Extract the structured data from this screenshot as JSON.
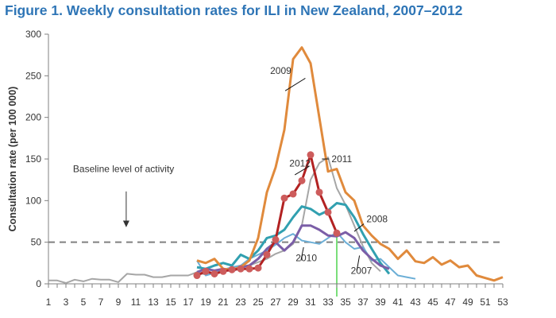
{
  "chart_data": {
    "type": "line",
    "title": "Figure 1. Weekly consultation rates for ILI in New Zealand, 2007–2012",
    "xlabel": "",
    "ylabel": "Consultation rate (per 100 000)",
    "xlim": [
      1,
      53
    ],
    "ylim": [
      0,
      300
    ],
    "yticks": [
      0,
      50,
      100,
      150,
      200,
      250,
      300
    ],
    "xticks": [
      1,
      3,
      5,
      7,
      9,
      11,
      13,
      15,
      17,
      19,
      21,
      23,
      25,
      27,
      29,
      31,
      33,
      35,
      37,
      39,
      41,
      43,
      45,
      47,
      49,
      51,
      53
    ],
    "grid": false,
    "baseline": {
      "value": 50,
      "label": "Baseline level of activity",
      "color": "#808080"
    },
    "marker_line": {
      "week": 34,
      "color": "#33cc33"
    },
    "series": [
      {
        "name": "2011",
        "color": "#a6a6a6",
        "start_week": 1,
        "values": [
          4,
          4,
          1,
          5,
          3,
          6,
          5,
          5,
          2,
          12,
          11,
          11,
          8,
          8,
          10,
          10,
          10,
          14,
          11,
          13,
          16,
          18,
          20,
          22,
          26,
          30,
          36,
          40,
          48,
          70,
          125,
          145,
          152,
          115,
          95,
          70,
          45,
          25,
          15
        ]
      },
      {
        "name": "2010",
        "color": "#6baed6",
        "start_week": 18,
        "values": [
          28,
          10,
          13,
          17,
          20,
          22,
          30,
          35,
          40,
          47,
          55,
          60,
          52,
          50,
          48,
          55,
          62,
          50,
          42,
          44,
          28,
          30,
          20,
          10,
          8,
          6
        ]
      },
      {
        "name": "2008",
        "color": "#31a0b0",
        "start_week": 18,
        "values": [
          20,
          18,
          22,
          25,
          22,
          35,
          30,
          40,
          55,
          58,
          65,
          80,
          93,
          90,
          83,
          88,
          97,
          95,
          80,
          60,
          42,
          25,
          12
        ]
      },
      {
        "name": "2007",
        "color": "#7b5ea7",
        "start_week": 18,
        "values": [
          14,
          18,
          16,
          18,
          15,
          20,
          22,
          30,
          42,
          50,
          40,
          50,
          70,
          70,
          65,
          58,
          57,
          62,
          55,
          40,
          30,
          22,
          18
        ]
      },
      {
        "name": "2009",
        "color": "#e08a3c",
        "start_week": 18,
        "values": [
          28,
          25,
          30,
          18,
          17,
          20,
          28,
          55,
          110,
          140,
          185,
          270,
          284,
          265,
          200,
          135,
          138,
          110,
          100,
          70,
          58,
          48,
          42,
          30,
          40,
          27,
          25,
          32,
          23,
          28,
          20,
          22,
          10,
          7,
          4,
          8
        ]
      },
      {
        "name": "2012",
        "color": "#b22222",
        "marker_color": "#cd5c5c",
        "start_week": 18,
        "markers": true,
        "values": [
          10,
          15,
          12,
          15,
          17,
          18,
          18,
          19,
          35,
          53,
          103,
          108,
          124,
          155,
          110,
          86,
          61
        ]
      }
    ],
    "annotations": [
      {
        "text": "2009",
        "week": 28.5,
        "value": 240
      },
      {
        "text": "2012",
        "week": 30.5,
        "value": 142
      },
      {
        "text": "2011",
        "week": 33,
        "value": 148
      },
      {
        "text": "2008",
        "week": 37.5,
        "value": 75
      },
      {
        "text": "2010",
        "week": 29,
        "value": 22
      },
      {
        "text": "2007",
        "week": 36.5,
        "value": 10
      }
    ]
  }
}
